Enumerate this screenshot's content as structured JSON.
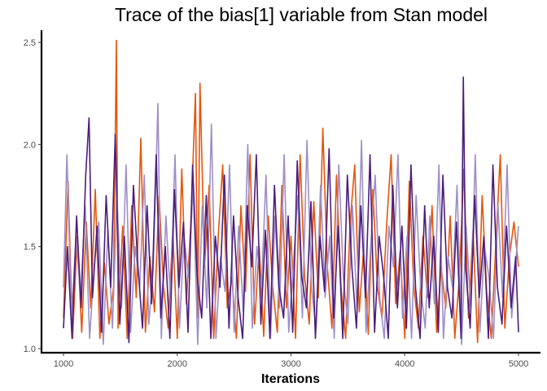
{
  "chart_data": {
    "type": "line",
    "title": "Trace of the bias[1] variable from Stan model",
    "xlabel": "Iterations",
    "ylabel": "",
    "xlim": [
      1000,
      5000
    ],
    "ylim": [
      0.98,
      2.56
    ],
    "x_ticks": [
      1000,
      2000,
      3000,
      4000,
      5000
    ],
    "y_ticks": [
      1.0,
      1.5,
      2.0,
      2.5
    ],
    "x_tick_labels": [
      "1000",
      "2000",
      "3000",
      "4000",
      "5000"
    ],
    "y_tick_labels": [
      "1.0",
      "1.5",
      "2.0",
      "2.5"
    ],
    "grid": false,
    "legend": "none",
    "series": [
      {
        "color": "#e6550d",
        "x": [
          1000,
          1040,
          1080,
          1120,
          1160,
          1200,
          1240,
          1280,
          1320,
          1360,
          1400,
          1440,
          1465,
          1480,
          1520,
          1560,
          1600,
          1640,
          1680,
          1720,
          1760,
          1800,
          1840,
          1880,
          1920,
          1960,
          2000,
          2040,
          2080,
          2120,
          2160,
          2180,
          2200,
          2240,
          2280,
          2320,
          2360,
          2400,
          2440,
          2480,
          2520,
          2560,
          2600,
          2640,
          2680,
          2720,
          2760,
          2800,
          2840,
          2880,
          2920,
          2960,
          3000,
          3040,
          3080,
          3120,
          3160,
          3200,
          3240,
          3280,
          3320,
          3360,
          3400,
          3440,
          3480,
          3520,
          3560,
          3600,
          3640,
          3680,
          3720,
          3760,
          3800,
          3840,
          3880,
          3920,
          3960,
          4000,
          4040,
          4080,
          4120,
          4160,
          4200,
          4240,
          4280,
          4320,
          4360,
          4400,
          4440,
          4480,
          4520,
          4560,
          4600,
          4640,
          4680,
          4720,
          4760,
          4800,
          4840,
          4880,
          4920,
          4960,
          5000
        ],
        "values": [
          1.15,
          1.82,
          1.05,
          1.55,
          1.08,
          1.62,
          1.2,
          1.78,
          1.05,
          1.42,
          1.12,
          1.3,
          2.51,
          1.1,
          1.6,
          1.05,
          1.7,
          1.25,
          2.03,
          1.08,
          1.45,
          1.18,
          1.75,
          1.3,
          1.1,
          1.58,
          1.05,
          1.88,
          1.22,
          1.62,
          2.25,
          1.15,
          2.3,
          1.4,
          1.8,
          1.05,
          1.55,
          1.9,
          1.2,
          1.35,
          1.05,
          1.7,
          1.28,
          1.95,
          1.12,
          1.5,
          1.06,
          1.65,
          1.3,
          1.08,
          1.8,
          1.2,
          1.55,
          1.05,
          1.95,
          1.35,
          1.12,
          1.72,
          1.25,
          2.08,
          1.4,
          1.1,
          1.85,
          1.3,
          1.05,
          1.62,
          1.9,
          1.18,
          1.5,
          1.07,
          1.78,
          1.3,
          1.15,
          1.6,
          1.95,
          1.22,
          1.48,
          1.05,
          1.82,
          1.3,
          1.1,
          1.55,
          1.25,
          1.7,
          1.08,
          1.4,
          1.2,
          1.65,
          1.05,
          1.35,
          1.88,
          1.15,
          1.58,
          1.03,
          1.75,
          1.28,
          1.05,
          1.5,
          1.95,
          1.1,
          1.45,
          1.62,
          1.4
        ]
      },
      {
        "color": "#9e8fc8",
        "x": [
          1000,
          1030,
          1070,
          1110,
          1150,
          1190,
          1230,
          1270,
          1310,
          1350,
          1390,
          1430,
          1470,
          1510,
          1550,
          1590,
          1630,
          1670,
          1710,
          1750,
          1790,
          1830,
          1860,
          1900,
          1940,
          1980,
          2020,
          2060,
          2100,
          2140,
          2180,
          2220,
          2260,
          2300,
          2340,
          2380,
          2420,
          2460,
          2500,
          2540,
          2580,
          2620,
          2660,
          2700,
          2740,
          2780,
          2820,
          2860,
          2900,
          2940,
          2980,
          3020,
          3060,
          3100,
          3140,
          3180,
          3220,
          3260,
          3300,
          3340,
          3380,
          3420,
          3460,
          3500,
          3540,
          3580,
          3620,
          3660,
          3700,
          3740,
          3780,
          3820,
          3860,
          3900,
          3940,
          3980,
          4020,
          4060,
          4100,
          4140,
          4180,
          4220,
          4260,
          4300,
          4340,
          4380,
          4420,
          4460,
          4500,
          4540,
          4580,
          4620,
          4660,
          4700,
          4740,
          4780,
          4820,
          4860,
          4900,
          4940,
          4980,
          5000
        ],
        "values": [
          1.3,
          1.95,
          1.15,
          1.55,
          1.25,
          1.7,
          1.05,
          1.4,
          1.62,
          1.02,
          1.58,
          1.1,
          1.75,
          1.2,
          1.9,
          1.08,
          1.5,
          1.3,
          1.85,
          1.12,
          1.4,
          2.2,
          1.05,
          1.65,
          1.25,
          1.95,
          1.1,
          1.55,
          1.35,
          1.8,
          1.02,
          1.7,
          1.2,
          2.1,
          1.05,
          1.45,
          1.28,
          1.9,
          1.08,
          1.6,
          1.18,
          2.0,
          1.1,
          1.5,
          1.3,
          1.85,
          1.05,
          1.65,
          1.2,
          1.95,
          1.08,
          1.4,
          1.75,
          1.15,
          2.02,
          1.3,
          1.1,
          1.8,
          1.25,
          1.55,
          1.05,
          1.9,
          1.35,
          1.12,
          1.7,
          1.2,
          2.02,
          1.08,
          1.5,
          1.85,
          1.25,
          1.05,
          1.6,
          1.4,
          1.95,
          1.15,
          1.55,
          1.05,
          1.75,
          1.3,
          1.1,
          1.65,
          1.22,
          1.9,
          1.05,
          1.45,
          1.3,
          1.8,
          1.02,
          1.6,
          1.2,
          1.95,
          1.08,
          1.5,
          1.35,
          1.05,
          1.7,
          1.25,
          1.9,
          1.15,
          1.45,
          1.6
        ]
      },
      {
        "color": "#4b1d7d",
        "x": [
          1000,
          1035,
          1075,
          1115,
          1155,
          1195,
          1225,
          1255,
          1295,
          1335,
          1375,
          1415,
          1455,
          1495,
          1535,
          1575,
          1615,
          1655,
          1695,
          1735,
          1775,
          1815,
          1855,
          1895,
          1935,
          1975,
          2015,
          2055,
          2095,
          2135,
          2175,
          2215,
          2255,
          2295,
          2335,
          2375,
          2415,
          2455,
          2495,
          2535,
          2575,
          2615,
          2655,
          2695,
          2735,
          2775,
          2815,
          2855,
          2895,
          2935,
          2975,
          3015,
          3055,
          3095,
          3135,
          3175,
          3215,
          3255,
          3295,
          3335,
          3375,
          3415,
          3455,
          3495,
          3535,
          3575,
          3615,
          3655,
          3695,
          3735,
          3775,
          3815,
          3855,
          3895,
          3935,
          3975,
          4015,
          4055,
          4095,
          4135,
          4175,
          4215,
          4255,
          4295,
          4335,
          4375,
          4415,
          4455,
          4495,
          4515,
          4535,
          4575,
          4615,
          4655,
          4695,
          4735,
          4775,
          4815,
          4855,
          4895,
          4935,
          4975,
          5000
        ],
        "values": [
          1.1,
          1.5,
          1.05,
          1.65,
          1.2,
          1.85,
          2.13,
          1.25,
          1.6,
          1.08,
          1.75,
          1.3,
          2.05,
          1.12,
          1.55,
          1.03,
          1.8,
          1.4,
          1.1,
          1.7,
          1.22,
          1.95,
          1.15,
          1.5,
          1.05,
          1.78,
          1.3,
          1.62,
          1.08,
          1.9,
          1.35,
          1.15,
          1.75,
          1.05,
          1.55,
          1.3,
          1.85,
          1.1,
          1.65,
          1.25,
          1.05,
          1.7,
          1.4,
          1.95,
          1.12,
          1.58,
          1.05,
          1.8,
          1.3,
          1.15,
          1.65,
          1.08,
          1.92,
          1.35,
          1.2,
          1.72,
          1.05,
          1.55,
          1.28,
          1.98,
          1.15,
          1.6,
          1.05,
          1.85,
          1.4,
          1.1,
          1.7,
          1.25,
          1.95,
          1.08,
          1.55,
          1.35,
          1.05,
          1.8,
          1.2,
          1.6,
          1.1,
          1.9,
          1.3,
          1.05,
          1.7,
          1.2,
          1.55,
          1.08,
          1.85,
          1.3,
          1.15,
          1.62,
          1.05,
          2.33,
          1.4,
          1.1,
          1.75,
          1.25,
          1.55,
          1.05,
          1.9,
          1.3,
          1.12,
          1.6,
          1.2,
          1.45,
          1.08
        ]
      }
    ]
  }
}
